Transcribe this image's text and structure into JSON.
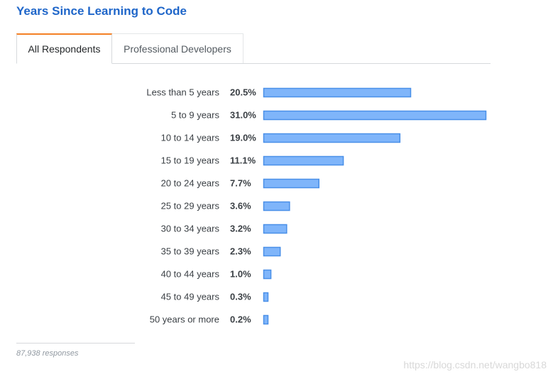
{
  "title": "Years Since Learning to Code",
  "tabs": [
    {
      "label": "All Respondents",
      "active": true
    },
    {
      "label": "Professional Developers",
      "active": false
    }
  ],
  "colors": {
    "title": "#1f66c9",
    "bar_fill": "#7fb5fa",
    "bar_stroke": "#4a90e8",
    "active_tab_accent": "#f48024"
  },
  "chart_data": {
    "type": "bar",
    "orientation": "horizontal",
    "categories": [
      "Less than 5 years",
      "5 to 9 years",
      "10 to 14 years",
      "15 to 19 years",
      "20 to 24 years",
      "25 to 29 years",
      "30 to 34 years",
      "35 to 39 years",
      "40 to 44 years",
      "45 to 49 years",
      "50 years or more"
    ],
    "values": [
      20.5,
      31.0,
      19.0,
      11.1,
      7.7,
      3.6,
      3.2,
      2.3,
      1.0,
      0.3,
      0.2
    ],
    "value_labels": [
      "20.5%",
      "31.0%",
      "19.0%",
      "11.1%",
      "7.7%",
      "3.6%",
      "3.2%",
      "2.3%",
      "1.0%",
      "0.3%",
      "0.2%"
    ],
    "unit": "%",
    "title": "Years Since Learning to Code",
    "xlabel": "",
    "ylabel": "",
    "grid": false,
    "legend": "none"
  },
  "footer": {
    "responses": "87,938 responses"
  },
  "watermark": "https://blog.csdn.net/wangbo818"
}
